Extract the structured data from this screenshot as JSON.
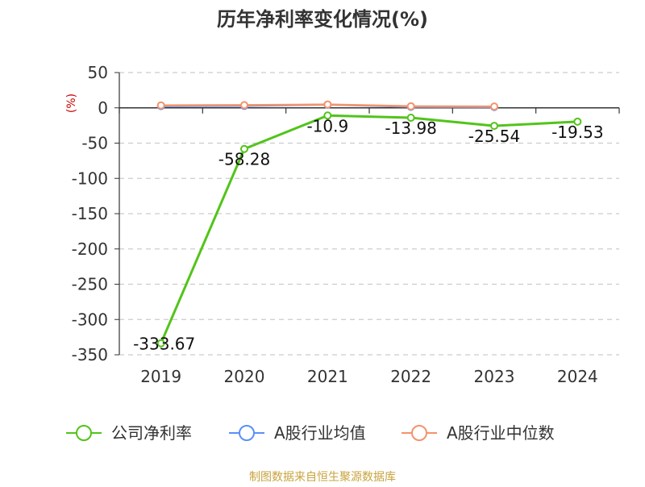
{
  "chart_data": {
    "type": "line",
    "title": "历年净利率变化情况(%)",
    "unit_label": "(%)",
    "categories": [
      "2019",
      "2020",
      "2021",
      "2022",
      "2023",
      "2024"
    ],
    "ylim": [
      -350,
      50
    ],
    "yticks": [
      50,
      0,
      -50,
      -100,
      -150,
      -200,
      -250,
      -300,
      -350
    ],
    "grid": true,
    "legend_position": "bottom",
    "series": [
      {
        "name": "公司净利率",
        "color": "#52c41a",
        "values": [
          -333.67,
          -58.28,
          -10.9,
          -13.98,
          -25.54,
          -19.53
        ],
        "labels": [
          "-333.67",
          "-58.28",
          "-10.9",
          "-13.98",
          "-25.54",
          "-19.53"
        ],
        "show_labels": true
      },
      {
        "name": "A股行业均值",
        "color": "#5b8ff9",
        "values": [
          2.5,
          2.8,
          4.5,
          1.5,
          1.2,
          null
        ],
        "show_labels": false
      },
      {
        "name": "A股行业中位数",
        "color": "#f4936b",
        "values": [
          3.5,
          3.8,
          4.7,
          2.2,
          1.8,
          null
        ],
        "show_labels": false
      }
    ],
    "source": "制图数据来自恒生聚源数据库"
  }
}
